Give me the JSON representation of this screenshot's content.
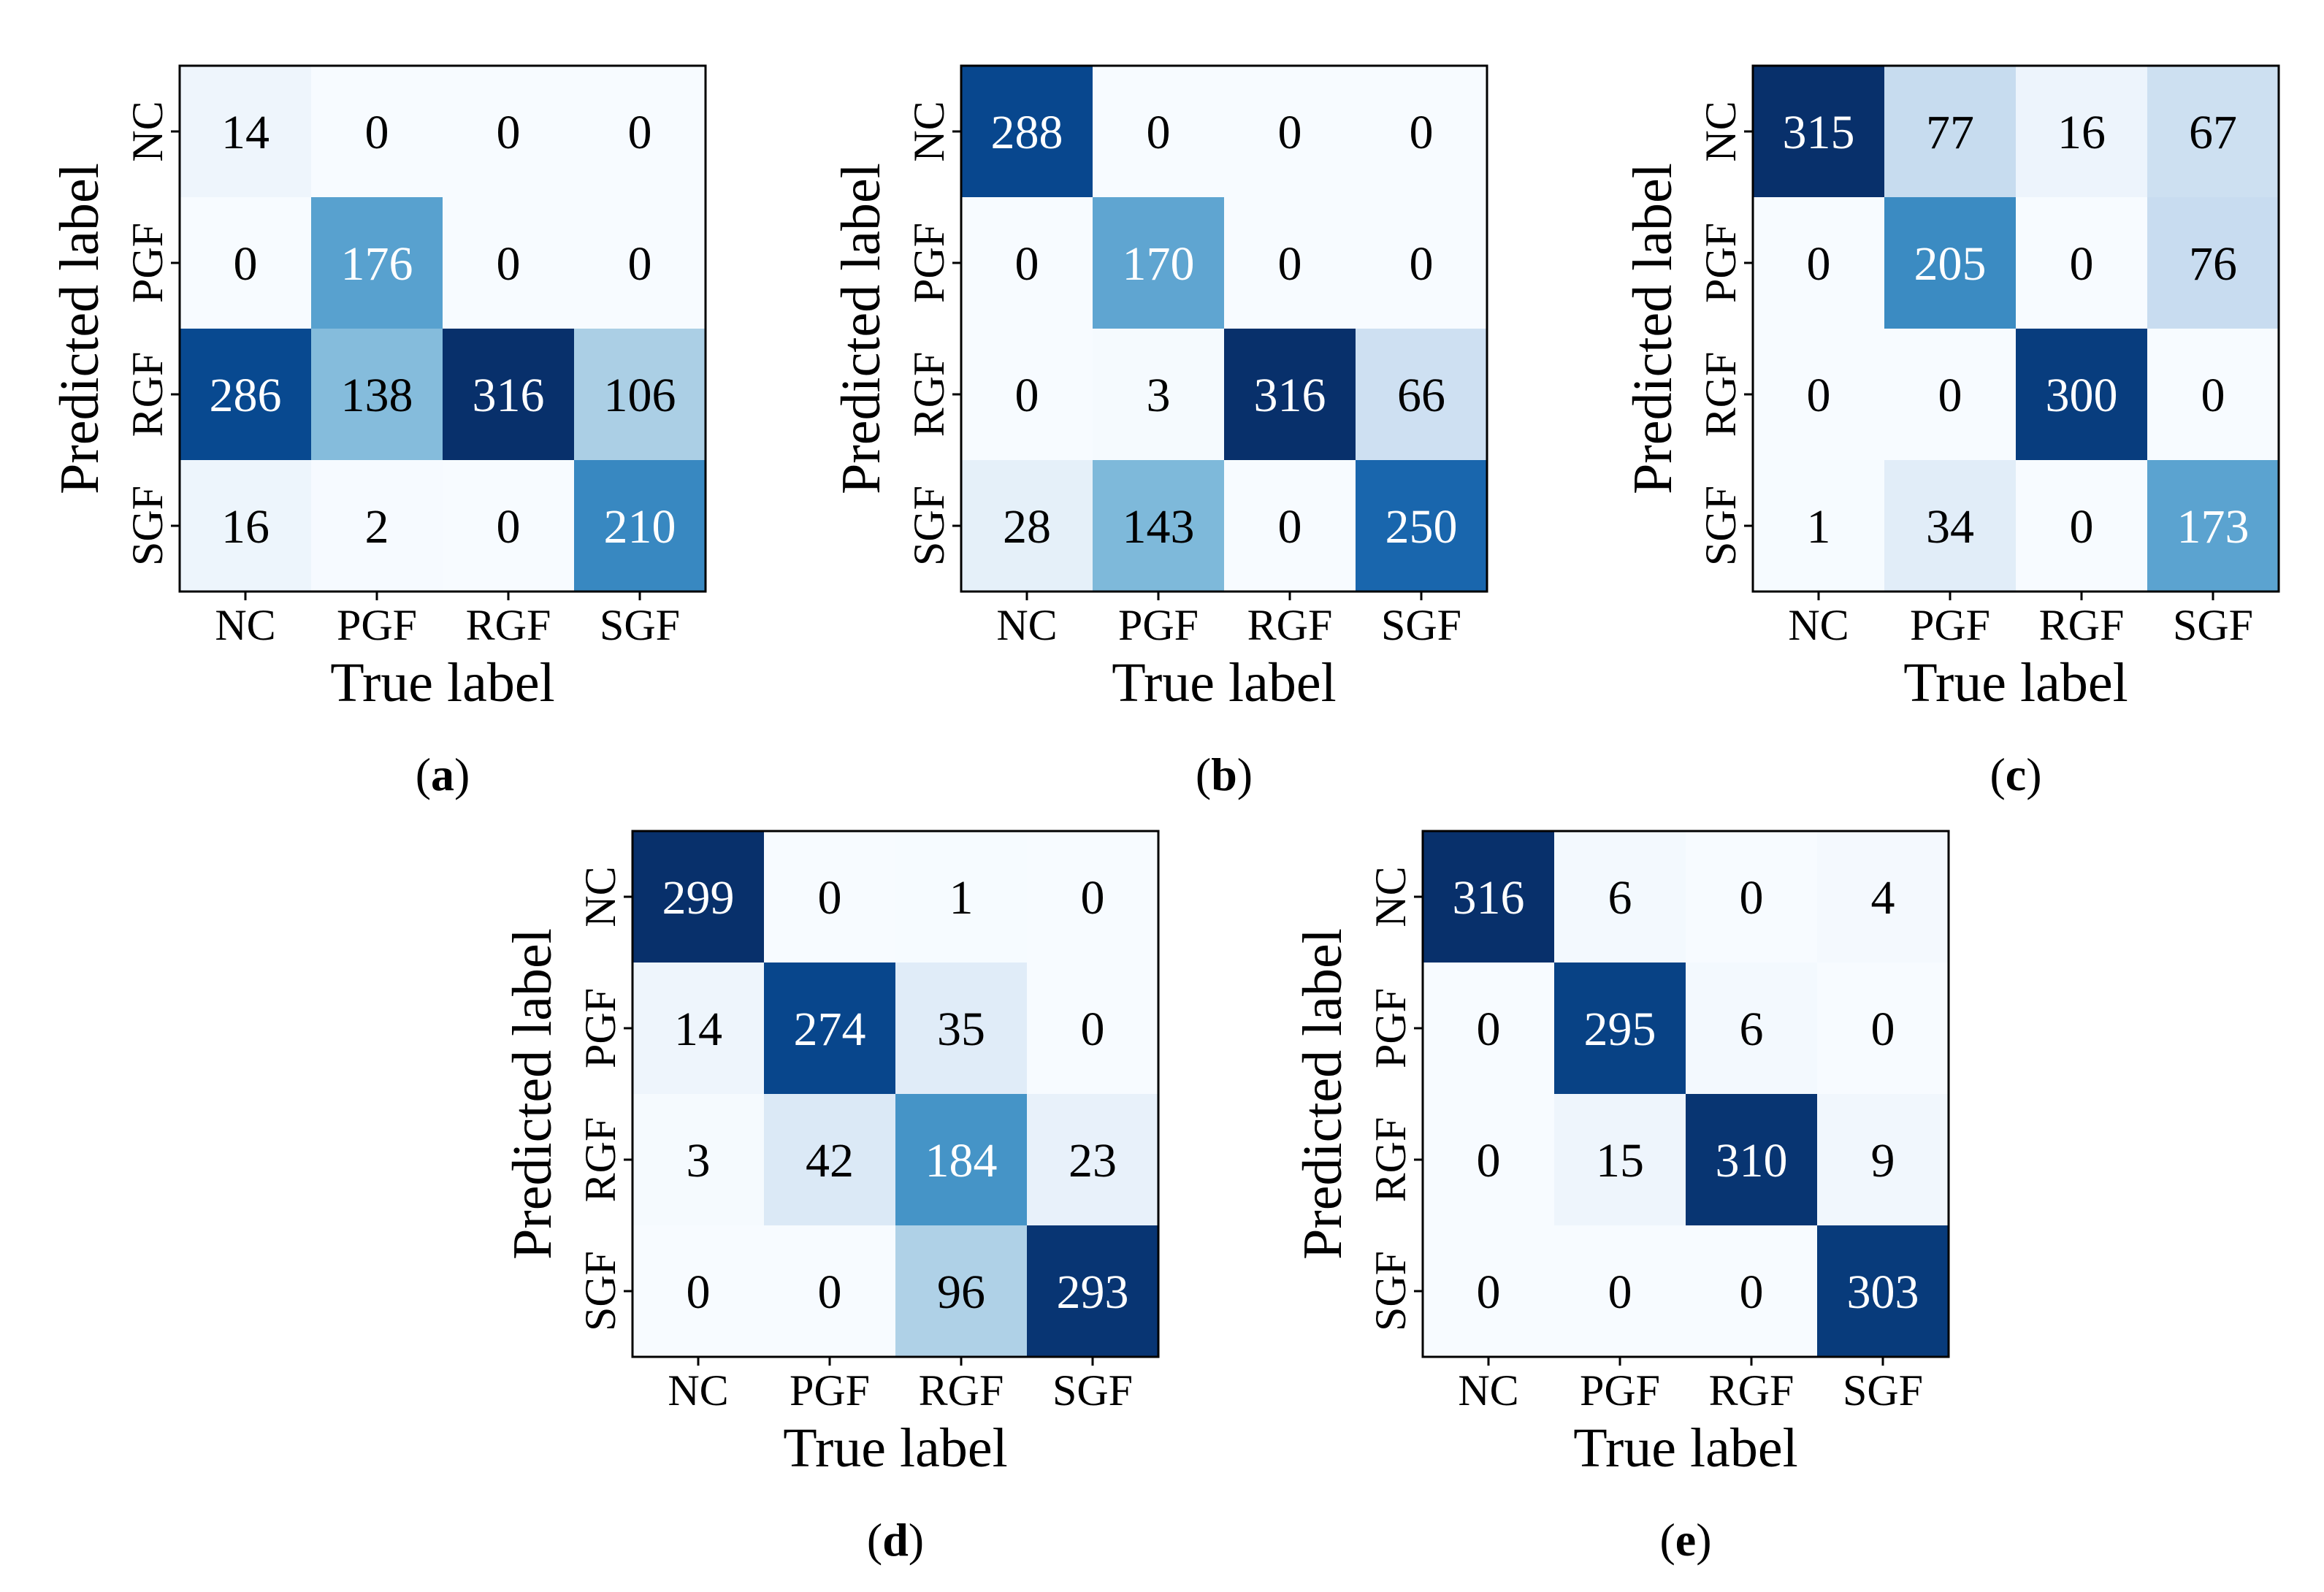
{
  "chart_data": [
    {
      "type": "heatmap",
      "panel_label": "a",
      "caption_open": "(",
      "caption_close": ")",
      "xlabel": "True label",
      "ylabel": "Predicted label",
      "x_categories": [
        "NC",
        "PGF",
        "RGF",
        "SGF"
      ],
      "y_categories": [
        "NC",
        "PGF",
        "RGF",
        "SGF"
      ],
      "values": [
        [
          14,
          0,
          0,
          0
        ],
        [
          0,
          176,
          0,
          0
        ],
        [
          286,
          138,
          316,
          106
        ],
        [
          16,
          2,
          0,
          210
        ]
      ],
      "colormap": "Blues",
      "vmin": 0,
      "vmax": 316
    },
    {
      "type": "heatmap",
      "panel_label": "b",
      "caption_open": "(",
      "caption_close": ")",
      "xlabel": "True label",
      "ylabel": "Predicted label",
      "x_categories": [
        "NC",
        "PGF",
        "RGF",
        "SGF"
      ],
      "y_categories": [
        "NC",
        "PGF",
        "RGF",
        "SGF"
      ],
      "values": [
        [
          288,
          0,
          0,
          0
        ],
        [
          0,
          170,
          0,
          0
        ],
        [
          0,
          3,
          316,
          66
        ],
        [
          28,
          143,
          0,
          250
        ]
      ],
      "colormap": "Blues",
      "vmin": 0,
      "vmax": 316
    },
    {
      "type": "heatmap",
      "panel_label": "c",
      "caption_open": "(",
      "caption_close": ")",
      "xlabel": "True label",
      "ylabel": "Predicted label",
      "x_categories": [
        "NC",
        "PGF",
        "RGF",
        "SGF"
      ],
      "y_categories": [
        "NC",
        "PGF",
        "RGF",
        "SGF"
      ],
      "values": [
        [
          315,
          77,
          16,
          67
        ],
        [
          0,
          205,
          0,
          76
        ],
        [
          0,
          0,
          300,
          0
        ],
        [
          1,
          34,
          0,
          173
        ]
      ],
      "colormap": "Blues",
      "vmin": 0,
      "vmax": 315
    },
    {
      "type": "heatmap",
      "panel_label": "d",
      "caption_open": "(",
      "caption_close": ")",
      "xlabel": "True label",
      "ylabel": "Predicted label",
      "x_categories": [
        "NC",
        "PGF",
        "RGF",
        "SGF"
      ],
      "y_categories": [
        "NC",
        "PGF",
        "RGF",
        "SGF"
      ],
      "values": [
        [
          299,
          0,
          1,
          0
        ],
        [
          14,
          274,
          35,
          0
        ],
        [
          3,
          42,
          184,
          23
        ],
        [
          0,
          0,
          96,
          293
        ]
      ],
      "colormap": "Blues",
      "vmin": 0,
      "vmax": 299
    },
    {
      "type": "heatmap",
      "panel_label": "e",
      "caption_open": "(",
      "caption_close": ")",
      "xlabel": "True label",
      "ylabel": "Predicted label",
      "x_categories": [
        "NC",
        "PGF",
        "RGF",
        "SGF"
      ],
      "y_categories": [
        "NC",
        "PGF",
        "RGF",
        "SGF"
      ],
      "values": [
        [
          316,
          6,
          0,
          4
        ],
        [
          0,
          295,
          6,
          0
        ],
        [
          0,
          15,
          310,
          9
        ],
        [
          0,
          0,
          0,
          303
        ]
      ],
      "colormap": "Blues",
      "vmin": 0,
      "vmax": 316
    }
  ],
  "colors": {
    "text_dark": "#000000",
    "text_light": "#ffffff",
    "frame": "#000000",
    "tick": "#000000",
    "blues_scale": [
      "#f7fbff",
      "#deebf7",
      "#c6dbef",
      "#9ecae1",
      "#6baed6",
      "#4292c6",
      "#2171b5",
      "#08519c",
      "#08306b"
    ]
  }
}
